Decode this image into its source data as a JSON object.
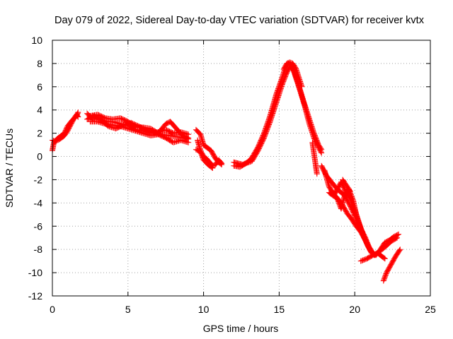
{
  "chart_data": {
    "type": "scatter",
    "title": "Day 079 of 2022, Sidereal Day-to-day VTEC variation (SDTVAR) for receiver kvtx",
    "xlabel": "GPS time / hours",
    "ylabel": "SDTVAR / TECUs",
    "xlim": [
      0,
      25
    ],
    "ylim": [
      -12,
      10
    ],
    "xticks": [
      0,
      5,
      10,
      15,
      20,
      25
    ],
    "yticks": [
      -12,
      -10,
      -8,
      -6,
      -4,
      -2,
      0,
      2,
      4,
      6,
      8,
      10
    ],
    "grid": true,
    "marker": "+",
    "series": [
      {
        "name": "SDTVAR",
        "color": "#ff0000",
        "segments": [
          [
            [
              0.0,
              0.5
            ],
            [
              0.1,
              1.2
            ],
            [
              0.3,
              1.5
            ],
            [
              0.5,
              1.7
            ],
            [
              0.8,
              2.0
            ],
            [
              1.0,
              2.6
            ],
            [
              1.3,
              3.1
            ],
            [
              1.6,
              3.5
            ],
            [
              1.7,
              3.8
            ]
          ],
          [
            [
              0.0,
              1.4
            ],
            [
              0.2,
              1.3
            ],
            [
              0.5,
              1.5
            ],
            [
              0.8,
              1.8
            ],
            [
              1.0,
              2.2
            ],
            [
              1.2,
              2.7
            ],
            [
              1.4,
              3.2
            ],
            [
              1.6,
              3.6
            ],
            [
              1.7,
              3.4
            ]
          ],
          [
            [
              2.3,
              3.7
            ],
            [
              2.6,
              3.3
            ],
            [
              3.0,
              3.3
            ],
            [
              3.5,
              3.0
            ],
            [
              4.0,
              3.0
            ],
            [
              4.5,
              2.8
            ],
            [
              5.0,
              2.7
            ],
            [
              5.5,
              2.3
            ],
            [
              6.0,
              2.2
            ],
            [
              6.5,
              2.0
            ],
            [
              7.0,
              2.1
            ],
            [
              7.5,
              2.3
            ],
            [
              8.0,
              2.0
            ],
            [
              8.5,
              2.1
            ],
            [
              9.0,
              1.9
            ]
          ],
          [
            [
              2.3,
              3.2
            ],
            [
              2.7,
              3.5
            ],
            [
              3.2,
              3.2
            ],
            [
              3.7,
              2.6
            ],
            [
              4.2,
              2.4
            ],
            [
              4.7,
              2.7
            ],
            [
              5.2,
              2.9
            ],
            [
              5.7,
              2.6
            ],
            [
              6.2,
              2.3
            ],
            [
              6.7,
              2.0
            ],
            [
              7.2,
              1.9
            ],
            [
              7.7,
              1.8
            ],
            [
              8.2,
              1.7
            ],
            [
              8.7,
              1.6
            ],
            [
              9.0,
              1.5
            ]
          ],
          [
            [
              2.5,
              3.5
            ],
            [
              3.0,
              3.6
            ],
            [
              3.5,
              3.3
            ],
            [
              4.0,
              3.2
            ],
            [
              4.5,
              3.3
            ],
            [
              5.0,
              3.0
            ],
            [
              5.5,
              2.5
            ],
            [
              6.0,
              2.5
            ],
            [
              6.5,
              2.4
            ],
            [
              7.0,
              2.0
            ],
            [
              7.5,
              2.8
            ],
            [
              7.8,
              3.0
            ],
            [
              8.2,
              2.4
            ],
            [
              8.6,
              1.8
            ],
            [
              9.0,
              1.6
            ]
          ],
          [
            [
              2.5,
              3.0
            ],
            [
              3.0,
              3.0
            ],
            [
              3.5,
              2.8
            ],
            [
              4.0,
              2.7
            ],
            [
              4.5,
              2.6
            ],
            [
              5.0,
              2.4
            ],
            [
              5.5,
              2.2
            ],
            [
              6.0,
              2.0
            ],
            [
              6.5,
              1.8
            ],
            [
              7.0,
              1.9
            ],
            [
              7.5,
              1.6
            ],
            [
              8.0,
              1.2
            ],
            [
              8.5,
              1.4
            ],
            [
              9.0,
              1.2
            ]
          ],
          [
            [
              9.5,
              2.3
            ],
            [
              9.8,
              1.9
            ],
            [
              10.0,
              1.0
            ],
            [
              10.2,
              0.8
            ],
            [
              10.5,
              0.5
            ],
            [
              10.8,
              -0.2
            ],
            [
              11.0,
              -0.5
            ],
            [
              11.2,
              -0.7
            ]
          ],
          [
            [
              9.6,
              1.4
            ],
            [
              9.8,
              0.5
            ],
            [
              10.0,
              0.0
            ],
            [
              10.2,
              -0.2
            ],
            [
              10.4,
              -0.5
            ],
            [
              10.6,
              -0.8
            ],
            [
              10.8,
              -0.7
            ],
            [
              11.0,
              -0.3
            ],
            [
              11.2,
              -0.6
            ]
          ],
          [
            [
              9.5,
              0.6
            ],
            [
              9.8,
              0.4
            ],
            [
              10.0,
              -0.3
            ],
            [
              10.3,
              -0.7
            ],
            [
              10.6,
              -1.0
            ]
          ],
          [
            [
              12.0,
              -0.5
            ],
            [
              12.3,
              -0.6
            ],
            [
              12.6,
              -0.7
            ],
            [
              12.9,
              -0.5
            ],
            [
              13.2,
              -0.1
            ],
            [
              13.6,
              0.8
            ],
            [
              14.0,
              2.0
            ],
            [
              14.4,
              3.5
            ],
            [
              14.8,
              5.3
            ],
            [
              15.2,
              6.8
            ],
            [
              15.4,
              7.6
            ],
            [
              15.6,
              8.0
            ],
            [
              15.8,
              7.9
            ],
            [
              16.0,
              7.3
            ],
            [
              16.3,
              6.1
            ],
            [
              16.6,
              4.8
            ],
            [
              17.0,
              3.2
            ],
            [
              17.3,
              2.0
            ],
            [
              17.6,
              1.0
            ],
            [
              17.8,
              0.6
            ]
          ],
          [
            [
              12.0,
              -0.8
            ],
            [
              12.4,
              -0.9
            ],
            [
              12.8,
              -0.6
            ],
            [
              13.2,
              -0.4
            ],
            [
              13.6,
              0.5
            ],
            [
              14.0,
              1.6
            ],
            [
              14.4,
              3.0
            ],
            [
              14.8,
              4.6
            ],
            [
              15.2,
              6.2
            ],
            [
              15.5,
              7.2
            ],
            [
              15.7,
              7.7
            ],
            [
              15.9,
              7.6
            ],
            [
              16.1,
              6.8
            ],
            [
              16.4,
              5.6
            ],
            [
              16.7,
              4.3
            ],
            [
              17.0,
              2.8
            ],
            [
              17.3,
              1.6
            ],
            [
              17.6,
              0.8
            ],
            [
              17.8,
              0.3
            ]
          ],
          [
            [
              15.3,
              7.5
            ],
            [
              15.5,
              8.0
            ],
            [
              15.7,
              8.1
            ],
            [
              15.9,
              8.0
            ],
            [
              16.1,
              7.6
            ],
            [
              16.3,
              6.8
            ],
            [
              16.5,
              6.0
            ]
          ],
          [
            [
              17.2,
              1.2
            ],
            [
              17.4,
              -0.6
            ],
            [
              17.5,
              -1.5
            ]
          ],
          [
            [
              18.0,
              -1.2
            ],
            [
              18.3,
              -2.6
            ],
            [
              18.6,
              -3.2
            ],
            [
              18.9,
              -3.8
            ],
            [
              19.1,
              -4.5
            ],
            [
              19.3,
              -3.5
            ],
            [
              19.6,
              -2.8
            ],
            [
              19.9,
              -3.8
            ],
            [
              20.1,
              -5.0
            ],
            [
              20.4,
              -6.2
            ],
            [
              20.7,
              -7.0
            ],
            [
              21.0,
              -8.0
            ],
            [
              21.3,
              -8.5
            ],
            [
              21.6,
              -8.2
            ],
            [
              22.0,
              -7.8
            ],
            [
              22.4,
              -7.3
            ],
            [
              22.8,
              -7.0
            ]
          ],
          [
            [
              17.8,
              -0.8
            ],
            [
              18.1,
              -1.6
            ],
            [
              18.4,
              -2.1
            ],
            [
              18.7,
              -2.6
            ],
            [
              19.0,
              -3.0
            ],
            [
              19.3,
              -3.3
            ],
            [
              19.6,
              -4.0
            ],
            [
              19.9,
              -4.8
            ],
            [
              20.2,
              -5.6
            ],
            [
              20.5,
              -6.6
            ],
            [
              20.8,
              -7.5
            ],
            [
              21.1,
              -8.3
            ],
            [
              21.4,
              -8.5
            ],
            [
              21.7,
              -8.0
            ],
            [
              22.0,
              -7.4
            ],
            [
              22.3,
              -7.2
            ],
            [
              22.6,
              -6.9
            ],
            [
              22.9,
              -6.7
            ]
          ],
          [
            [
              18.3,
              -3.1
            ],
            [
              18.6,
              -3.4
            ],
            [
              18.9,
              -2.7
            ],
            [
              19.1,
              -2.2
            ],
            [
              19.4,
              -3.0
            ],
            [
              19.7,
              -3.6
            ],
            [
              20.0,
              -4.6
            ],
            [
              20.3,
              -5.8
            ],
            [
              20.6,
              -6.9
            ],
            [
              20.9,
              -7.8
            ],
            [
              21.2,
              -8.4
            ]
          ],
          [
            [
              18.5,
              -3.2
            ],
            [
              18.8,
              -3.5
            ],
            [
              19.2,
              -4.2
            ],
            [
              19.5,
              -4.9
            ],
            [
              19.8,
              -5.4
            ],
            [
              20.1,
              -6.0
            ],
            [
              20.4,
              -6.5
            ],
            [
              20.7,
              -7.2
            ],
            [
              21.0,
              -7.9
            ],
            [
              21.3,
              -8.5
            ]
          ],
          [
            [
              19.7,
              -3.0
            ],
            [
              19.5,
              -2.6
            ],
            [
              19.3,
              -2.2
            ],
            [
              19.2,
              -2.0
            ]
          ],
          [
            [
              20.4,
              -9.0
            ],
            [
              20.8,
              -8.8
            ],
            [
              21.2,
              -8.5
            ],
            [
              21.5,
              -8.3
            ],
            [
              21.8,
              -8.6
            ],
            [
              22.0,
              -8.8
            ]
          ],
          [
            [
              21.9,
              -10.7
            ],
            [
              22.1,
              -10.0
            ],
            [
              22.4,
              -9.3
            ],
            [
              22.7,
              -8.6
            ],
            [
              23.0,
              -8.0
            ]
          ]
        ]
      }
    ]
  }
}
